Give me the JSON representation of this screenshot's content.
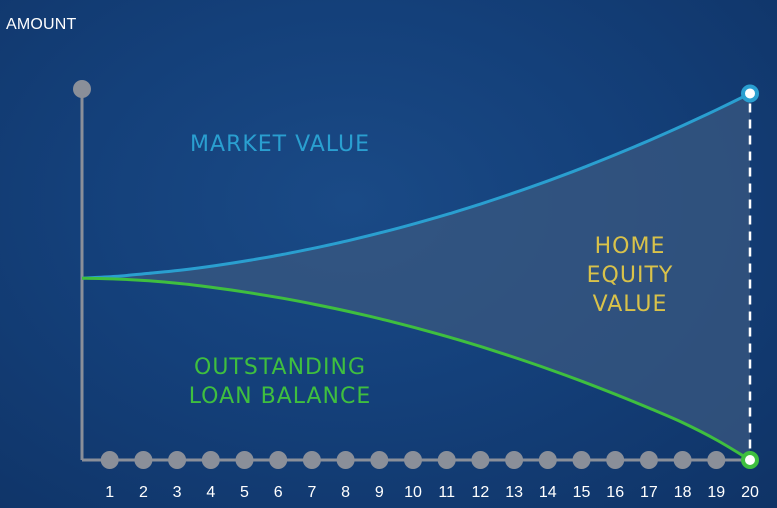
{
  "chart_data": {
    "type": "area",
    "ylabel": "AMOUNT",
    "xlabel": "",
    "x": [
      0,
      1,
      2,
      3,
      4,
      5,
      6,
      7,
      8,
      9,
      10,
      11,
      12,
      13,
      14,
      15,
      16,
      17,
      18,
      19,
      20
    ],
    "x_tick_labels": [
      "1",
      "2",
      "3",
      "4",
      "5",
      "6",
      "7",
      "8",
      "9",
      "10",
      "11",
      "12",
      "13",
      "14",
      "15",
      "16",
      "17",
      "18",
      "19",
      "20"
    ],
    "xlim": [
      0,
      20
    ],
    "ylim": [
      0,
      100
    ],
    "series": [
      {
        "name": "MARKET VALUE",
        "values": [
          49,
          49.5,
          50.3,
          51.2,
          52.4,
          53.8,
          55.4,
          57.2,
          59.2,
          61.4,
          63.8,
          66.4,
          69.2,
          72.2,
          75.4,
          78.8,
          82.4,
          86.2,
          90.2,
          94.4,
          98.8
        ],
        "color": "#2a9fd0"
      },
      {
        "name": "OUTSTANDING LOAN BALANCE",
        "values": [
          49,
          48.8,
          48.3,
          47.5,
          46.4,
          45.1,
          43.6,
          41.9,
          40.0,
          37.9,
          35.6,
          33.1,
          30.4,
          27.5,
          24.4,
          21.1,
          17.6,
          13.9,
          10.0,
          5.4,
          0
        ],
        "color": "#3fbf3f"
      }
    ],
    "annotations": [
      {
        "text_lines": [
          "HOME",
          "EQUITY",
          "VALUE"
        ],
        "color": "#d9c24a"
      }
    ],
    "grid": false,
    "legend": "none"
  },
  "labels": {
    "market_value": "MARKET VALUE",
    "loan_line1": "OUTSTANDING",
    "loan_line2": "LOAN BALANCE",
    "equity_line1": "HOME",
    "equity_line2": "EQUITY",
    "equity_line3": "VALUE"
  },
  "colors": {
    "market": "#2a9fd0",
    "loan": "#3fbf3f",
    "equity_text": "#d9c24a",
    "axis": "#8a8f99",
    "equity_fill": "#3a5880",
    "tick_text": "#ffffff"
  }
}
